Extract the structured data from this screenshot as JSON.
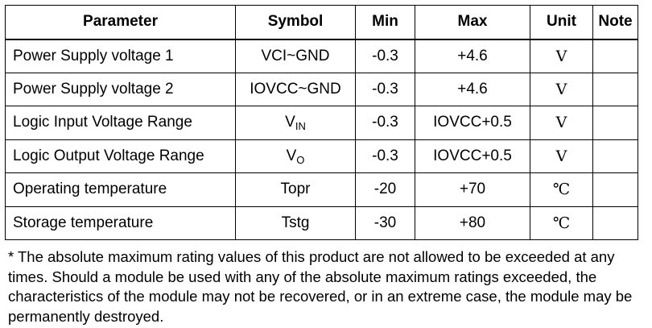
{
  "table": {
    "headers": {
      "parameter": "Parameter",
      "symbol": "Symbol",
      "min": "Min",
      "max": "Max",
      "unit": "Unit",
      "note": "Note"
    },
    "rows": [
      {
        "parameter": "Power Supply voltage 1",
        "symbol_main": "VCI~GND",
        "symbol_sub": "",
        "min": "-0.3",
        "max": "+4.6",
        "unit": "V",
        "note": ""
      },
      {
        "parameter": "Power Supply voltage 2",
        "symbol_main": "IOVCC~GND",
        "symbol_sub": "",
        "min": "-0.3",
        "max": "+4.6",
        "unit": "V",
        "note": ""
      },
      {
        "parameter": "Logic Input Voltage Range",
        "symbol_main": "V",
        "symbol_sub": "IN",
        "min": "-0.3",
        "max": "IOVCC+0.5",
        "unit": "V",
        "note": ""
      },
      {
        "parameter": "Logic Output Voltage Range",
        "symbol_main": "V",
        "symbol_sub": "O",
        "min": "-0.3",
        "max": "IOVCC+0.5",
        "unit": "V",
        "note": ""
      },
      {
        "parameter": "Operating temperature",
        "symbol_main": "Topr",
        "symbol_sub": "",
        "min": "-20",
        "max": "+70",
        "unit": "℃",
        "note": ""
      },
      {
        "parameter": "Storage temperature",
        "symbol_main": "Tstg",
        "symbol_sub": "",
        "min": "-30",
        "max": "+80",
        "unit": "℃",
        "note": ""
      }
    ]
  },
  "footnote": "* The absolute maximum rating values of this product are not allowed to be exceeded at any times. Should a module be used with any of the absolute maximum ratings exceeded, the characteristics of the module may not be recovered, or in an extreme case, the module may be permanently destroyed."
}
